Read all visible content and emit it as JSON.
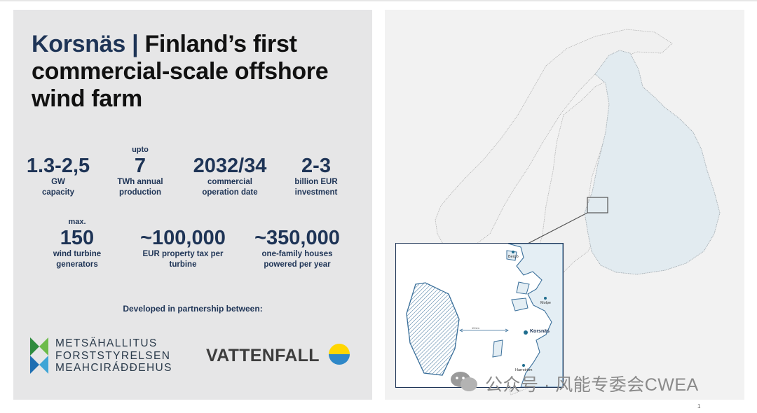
{
  "title": {
    "brand": "Korsnäs |",
    "rest": "Finland’s first",
    "line2": "commercial-scale offshore",
    "line3": "wind farm"
  },
  "stats": [
    {
      "pre": "",
      "value": "1.3-2,5",
      "label1": "GW",
      "label2": "capacity"
    },
    {
      "pre": "upto",
      "value": "7",
      "label1": "TWh annual",
      "label2": "production"
    },
    {
      "pre": "",
      "value": "2032/34",
      "label1": "commercial",
      "label2": "operation date"
    },
    {
      "pre": "",
      "value": "2-3",
      "label1": "billion EUR",
      "label2": "investment"
    },
    {
      "pre": "max.",
      "value": "150",
      "label1": "wind turbine",
      "label2": "generators"
    },
    {
      "pre": "",
      "value": "~100,000",
      "label1": "EUR property tax per",
      "label2": "turbine"
    },
    {
      "pre": "",
      "value": "~350,000",
      "label1": "one-family houses",
      "label2": "powered per year"
    }
  ],
  "partners": {
    "heading": "Developed in partnership between:",
    "metsahallitus": [
      "METSÄHALLITUS",
      "FORSTSTYRELSEN",
      "MEAHCIRÁÐĐEHUS"
    ],
    "vattenfall": "VATTENFALL"
  },
  "map": {
    "places": [
      "Bergö",
      "Molpe",
      "Korsnäs",
      "Harrström"
    ],
    "distance": "15 km",
    "colors": {
      "land": "#e2ebf0",
      "border": "#999999",
      "farm": "#3a6f9a",
      "accent": "#1f6d8e"
    }
  },
  "watermark": "公众号 · 风能专委会CWEA",
  "page_number": "1"
}
